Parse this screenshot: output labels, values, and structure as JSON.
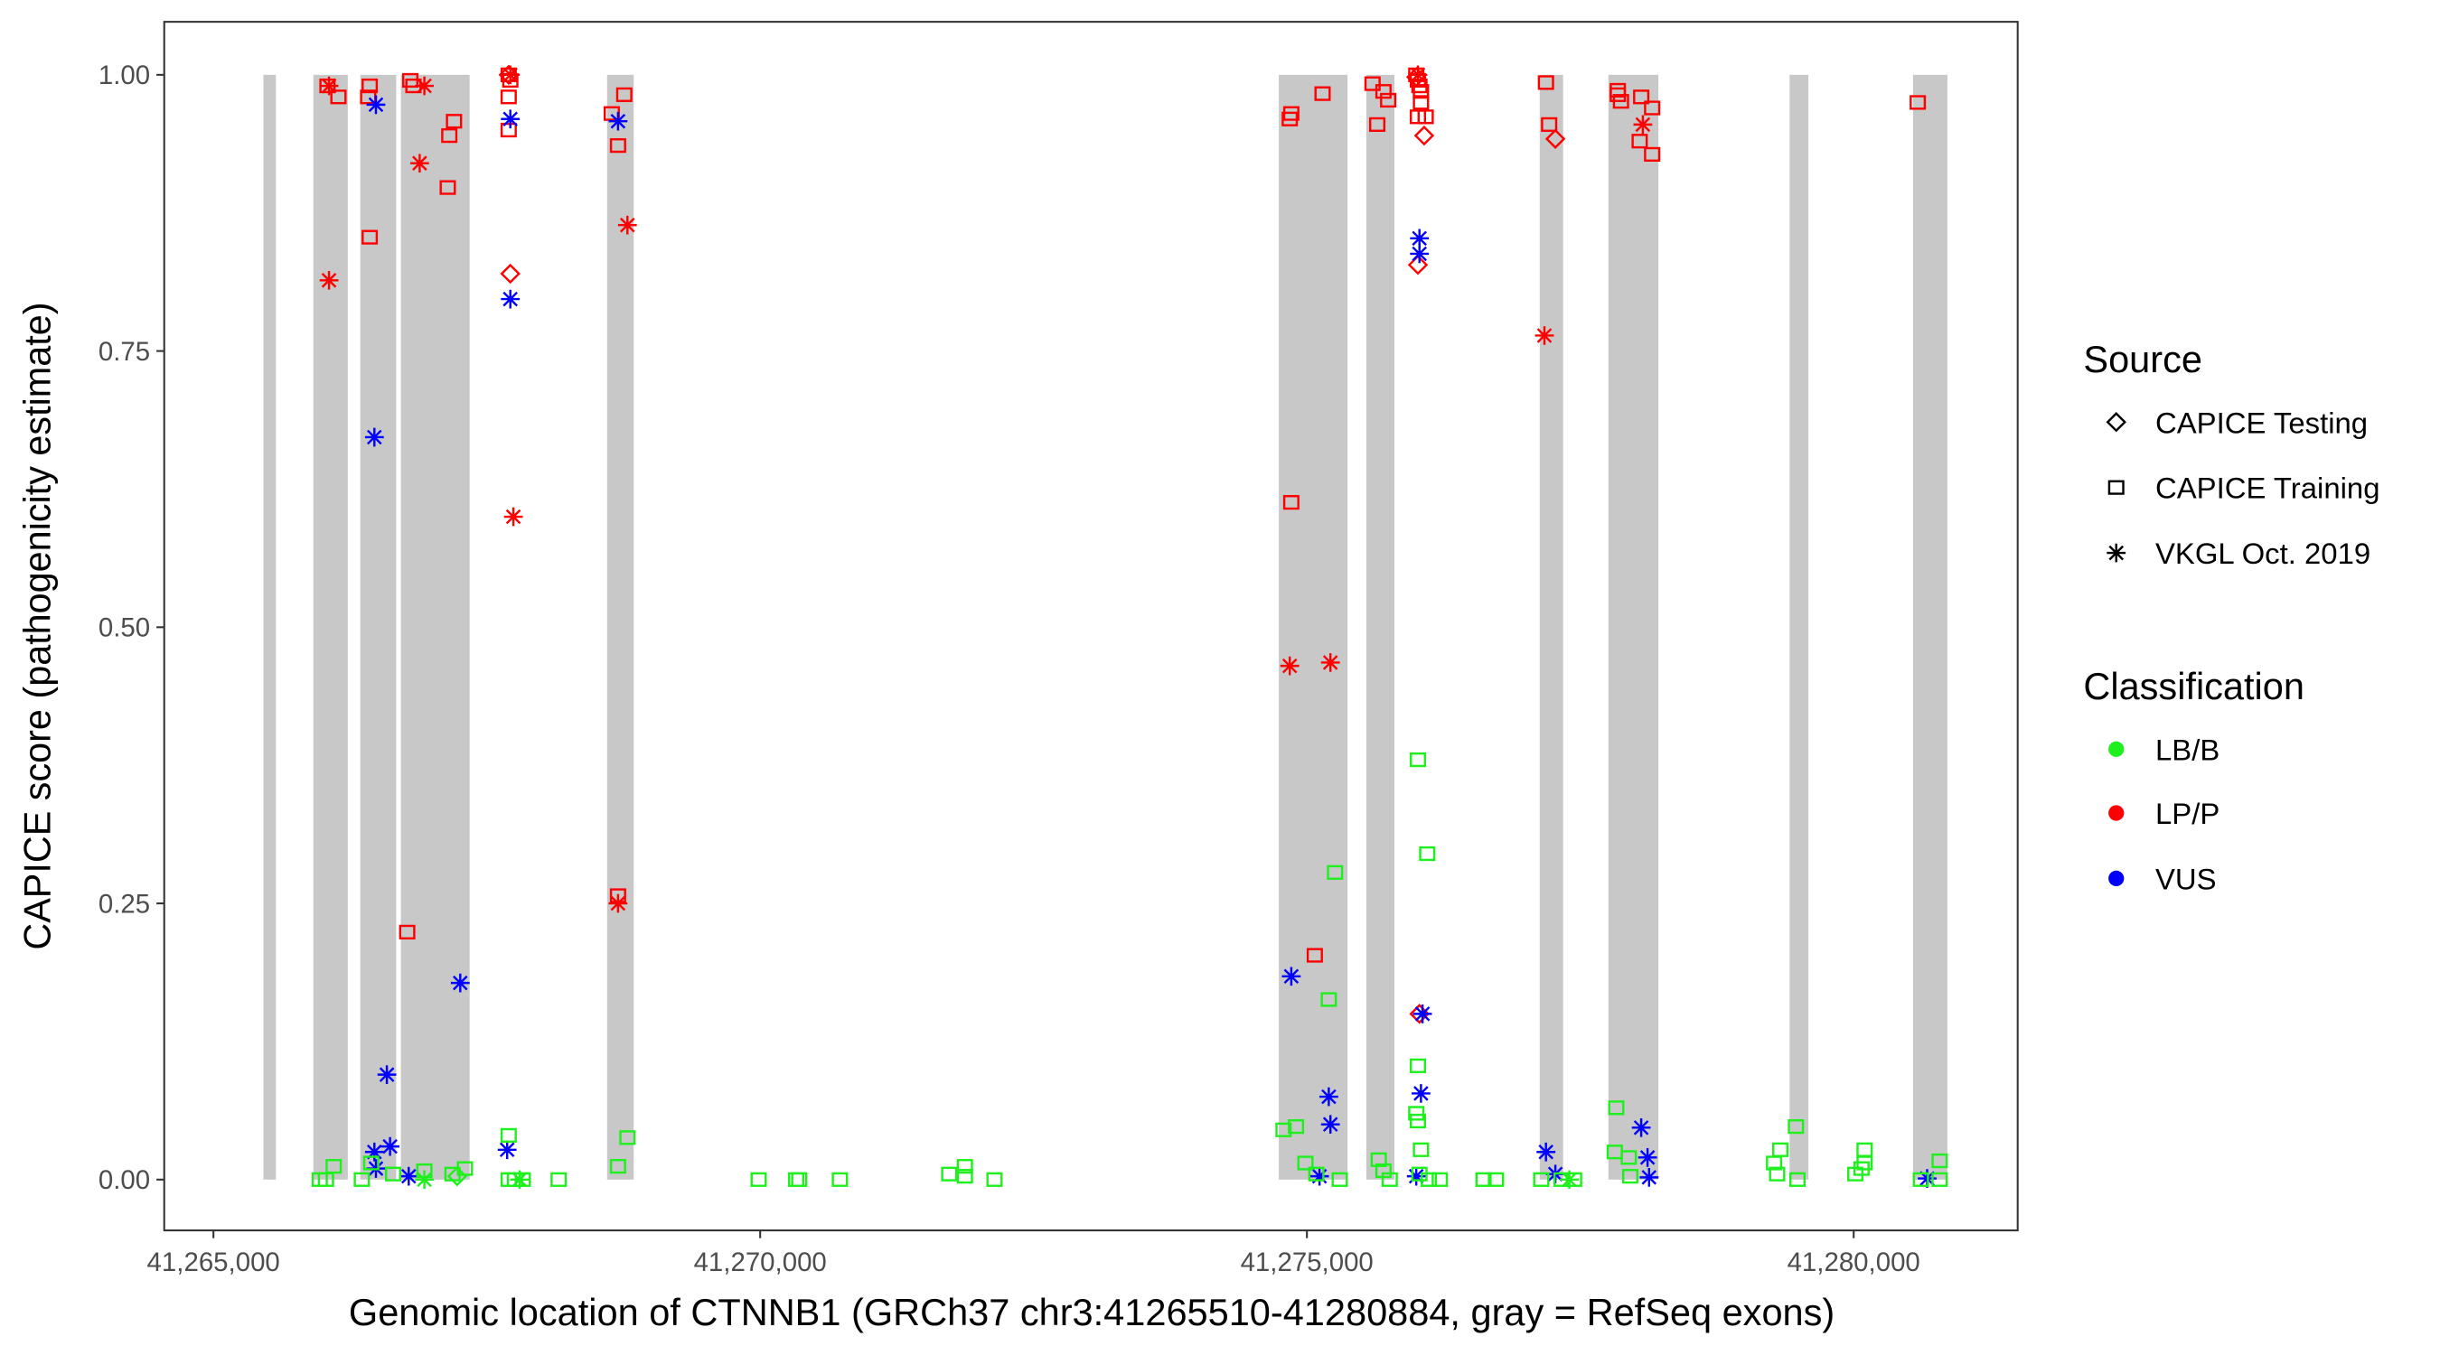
{
  "chart_data": {
    "type": "scatter",
    "xlabel": "Genomic location of CTNNB1 (GRCh37 chr3:41265510-41280884, gray = RefSeq exons)",
    "ylabel": "CAPICE score (pathogenicity estimate)",
    "xlim": [
      41264550,
      41281500
    ],
    "ylim": [
      -0.046,
      1.048
    ],
    "x_ticks": [
      41265000,
      41270000,
      41275000,
      41280000
    ],
    "x_tick_labels": [
      "41,265,000",
      "41,270,000",
      "41,275,000",
      "41,280,000"
    ],
    "y_ticks": [
      0,
      0.25,
      0.5,
      0.75,
      1.0
    ],
    "y_tick_labels": [
      "0.00",
      "0.25",
      "0.50",
      "0.75",
      "1.00"
    ],
    "grid": false,
    "exons": [
      [
        41265457,
        41265571
      ],
      [
        41265914,
        41266229
      ],
      [
        41266343,
        41266671
      ],
      [
        41266714,
        41267343
      ],
      [
        41268600,
        41268843
      ],
      [
        41274743,
        41275371
      ],
      [
        41275543,
        41275800
      ],
      [
        41277129,
        41277343
      ],
      [
        41277757,
        41278214
      ],
      [
        41279414,
        41279586
      ],
      [
        41280543,
        41280857
      ]
    ],
    "exon_color": "#c8c8c8",
    "legend": {
      "placement": "right",
      "source_title": "Source",
      "source_items": [
        {
          "key": "testing",
          "label": "CAPICE Testing",
          "shape": "diamond"
        },
        {
          "key": "training",
          "label": "CAPICE Training",
          "shape": "square"
        },
        {
          "key": "vkgl",
          "label": "VKGL Oct. 2019",
          "shape": "asterisk"
        }
      ],
      "class_title": "Classification",
      "class_items": [
        {
          "key": "LB/B",
          "label": "LB/B",
          "color": "#1ef01e"
        },
        {
          "key": "LP/P",
          "label": "LP/P",
          "color": "#ff0000"
        },
        {
          "key": "VUS",
          "label": "VUS",
          "color": "#0000ff"
        }
      ]
    },
    "points": [
      [
        41266043,
        0.99,
        "training",
        "LP/P"
      ],
      [
        41266143,
        0.98,
        "training",
        "LP/P"
      ],
      [
        41266429,
        0.99,
        "training",
        "LP/P"
      ],
      [
        41266415,
        0.98,
        "training",
        "LP/P"
      ],
      [
        41266429,
        0.853,
        "training",
        "LP/P"
      ],
      [
        41266800,
        0.995,
        "training",
        "LP/P"
      ],
      [
        41266829,
        0.99,
        "training",
        "LP/P"
      ],
      [
        41267200,
        0.958,
        "training",
        "LP/P"
      ],
      [
        41267157,
        0.945,
        "training",
        "LP/P"
      ],
      [
        41267143,
        0.898,
        "training",
        "LP/P"
      ],
      [
        41266772,
        0.224,
        "training",
        "LP/P"
      ],
      [
        41267700,
        1.0,
        "training",
        "LP/P"
      ],
      [
        41267715,
        0.995,
        "training",
        "LP/P"
      ],
      [
        41267700,
        0.98,
        "training",
        "LP/P"
      ],
      [
        41267700,
        0.95,
        "training",
        "LP/P"
      ],
      [
        41268643,
        0.965,
        "training",
        "LP/P"
      ],
      [
        41268757,
        0.982,
        "training",
        "LP/P"
      ],
      [
        41268700,
        0.936,
        "training",
        "LP/P"
      ],
      [
        41268700,
        0.257,
        "training",
        "LP/P"
      ],
      [
        41274843,
        0.96,
        "training",
        "LP/P"
      ],
      [
        41274857,
        0.965,
        "training",
        "LP/P"
      ],
      [
        41275143,
        0.983,
        "training",
        "LP/P"
      ],
      [
        41274857,
        0.613,
        "training",
        "LP/P"
      ],
      [
        41275072,
        0.203,
        "training",
        "LP/P"
      ],
      [
        41275600,
        0.992,
        "training",
        "LP/P"
      ],
      [
        41275643,
        0.955,
        "training",
        "LP/P"
      ],
      [
        41275743,
        0.977,
        "training",
        "LP/P"
      ],
      [
        41275700,
        0.985,
        "training",
        "LP/P"
      ],
      [
        41276000,
        1.0,
        "training",
        "LP/P"
      ],
      [
        41276015,
        0.995,
        "training",
        "LP/P"
      ],
      [
        41276029,
        0.99,
        "training",
        "LP/P"
      ],
      [
        41276043,
        0.985,
        "training",
        "LP/P"
      ],
      [
        41276043,
        0.975,
        "training",
        "LP/P"
      ],
      [
        41276086,
        0.962,
        "training",
        "LP/P"
      ],
      [
        41276015,
        0.962,
        "training",
        "LP/P"
      ],
      [
        41277186,
        0.993,
        "training",
        "LP/P"
      ],
      [
        41277215,
        0.955,
        "training",
        "LP/P"
      ],
      [
        41277843,
        0.986,
        "training",
        "LP/P"
      ],
      [
        41277872,
        0.976,
        "training",
        "LP/P"
      ],
      [
        41277843,
        0.982,
        "training",
        "LP/P"
      ],
      [
        41278057,
        0.98,
        "training",
        "LP/P"
      ],
      [
        41278043,
        0.94,
        "training",
        "LP/P"
      ],
      [
        41278157,
        0.928,
        "training",
        "LP/P"
      ],
      [
        41278157,
        0.97,
        "training",
        "LP/P"
      ],
      [
        41280586,
        0.975,
        "training",
        "LP/P"
      ],
      [
        41266057,
        0.99,
        "vkgl",
        "LP/P"
      ],
      [
        41266929,
        0.99,
        "vkgl",
        "LP/P"
      ],
      [
        41266057,
        0.814,
        "vkgl",
        "LP/P"
      ],
      [
        41266886,
        0.92,
        "vkgl",
        "LP/P"
      ],
      [
        41267743,
        0.6,
        "vkgl",
        "LP/P"
      ],
      [
        41268786,
        0.864,
        "vkgl",
        "LP/P"
      ],
      [
        41268700,
        0.25,
        "vkgl",
        "LP/P"
      ],
      [
        41274843,
        0.465,
        "vkgl",
        "LP/P"
      ],
      [
        41275215,
        0.468,
        "vkgl",
        "LP/P"
      ],
      [
        41277172,
        0.764,
        "vkgl",
        "LP/P"
      ],
      [
        41278072,
        0.955,
        "vkgl",
        "LP/P"
      ],
      [
        41267715,
        1.0,
        "vkgl",
        "LP/P"
      ],
      [
        41276015,
        1.0,
        "vkgl",
        "LP/P"
      ],
      [
        41267715,
        0.82,
        "testing",
        "LP/P"
      ],
      [
        41276072,
        0.945,
        "testing",
        "LP/P"
      ],
      [
        41277272,
        0.942,
        "testing",
        "LP/P"
      ],
      [
        41276015,
        0.828,
        "testing",
        "LP/P"
      ],
      [
        41276029,
        0.15,
        "testing",
        "LP/P"
      ],
      [
        41267700,
        1.0,
        "testing",
        "LP/P"
      ],
      [
        41276000,
        0.998,
        "testing",
        "LP/P"
      ],
      [
        41266486,
        0.973,
        "vkgl",
        "VUS"
      ],
      [
        41266472,
        0.672,
        "vkgl",
        "VUS"
      ],
      [
        41266586,
        0.095,
        "vkgl",
        "VUS"
      ],
      [
        41266615,
        0.03,
        "vkgl",
        "VUS"
      ],
      [
        41266486,
        0.01,
        "vkgl",
        "VUS"
      ],
      [
        41266472,
        0.025,
        "vkgl",
        "VUS"
      ],
      [
        41266786,
        0.003,
        "vkgl",
        "VUS"
      ],
      [
        41267257,
        0.178,
        "vkgl",
        "VUS"
      ],
      [
        41267715,
        0.96,
        "vkgl",
        "VUS"
      ],
      [
        41267715,
        0.797,
        "vkgl",
        "VUS"
      ],
      [
        41267686,
        0.027,
        "vkgl",
        "VUS"
      ],
      [
        41268700,
        0.958,
        "vkgl",
        "VUS"
      ],
      [
        41274857,
        0.184,
        "vkgl",
        "VUS"
      ],
      [
        41275200,
        0.075,
        "vkgl",
        "VUS"
      ],
      [
        41275215,
        0.05,
        "vkgl",
        "VUS"
      ],
      [
        41275115,
        0.003,
        "vkgl",
        "VUS"
      ],
      [
        41276029,
        0.852,
        "vkgl",
        "VUS"
      ],
      [
        41276029,
        0.838,
        "vkgl",
        "VUS"
      ],
      [
        41276043,
        0.078,
        "vkgl",
        "VUS"
      ],
      [
        41276057,
        0.15,
        "vkgl",
        "VUS"
      ],
      [
        41276000,
        0.003,
        "vkgl",
        "VUS"
      ],
      [
        41277186,
        0.025,
        "vkgl",
        "VUS"
      ],
      [
        41277272,
        0.005,
        "vkgl",
        "VUS"
      ],
      [
        41278057,
        0.047,
        "vkgl",
        "VUS"
      ],
      [
        41278115,
        0.02,
        "vkgl",
        "VUS"
      ],
      [
        41278129,
        0.002,
        "vkgl",
        "VUS"
      ],
      [
        41280672,
        0.001,
        "vkgl",
        "VUS"
      ],
      [
        41265972,
        0,
        "training",
        "LB/B"
      ],
      [
        41266029,
        0,
        "training",
        "LB/B"
      ],
      [
        41266100,
        0.012,
        "training",
        "LB/B"
      ],
      [
        41266357,
        0,
        "training",
        "LB/B"
      ],
      [
        41266443,
        0.015,
        "training",
        "LB/B"
      ],
      [
        41266643,
        0.005,
        "training",
        "LB/B"
      ],
      [
        41266929,
        0.008,
        "training",
        "LB/B"
      ],
      [
        41267186,
        0.005,
        "training",
        "LB/B"
      ],
      [
        41267300,
        0.01,
        "training",
        "LB/B"
      ],
      [
        41267700,
        0.04,
        "training",
        "LB/B"
      ],
      [
        41267700,
        0,
        "training",
        "LB/B"
      ],
      [
        41267757,
        0,
        "training",
        "LB/B"
      ],
      [
        41267829,
        0,
        "training",
        "LB/B"
      ],
      [
        41268157,
        0,
        "training",
        "LB/B"
      ],
      [
        41268700,
        0.012,
        "training",
        "LB/B"
      ],
      [
        41268786,
        0.038,
        "training",
        "LB/B"
      ],
      [
        41269986,
        0,
        "training",
        "LB/B"
      ],
      [
        41270329,
        0,
        "training",
        "LB/B"
      ],
      [
        41270357,
        0,
        "training",
        "LB/B"
      ],
      [
        41270729,
        0,
        "training",
        "LB/B"
      ],
      [
        41271729,
        0.005,
        "training",
        "LB/B"
      ],
      [
        41271872,
        0.012,
        "training",
        "LB/B"
      ],
      [
        41271872,
        0.003,
        "training",
        "LB/B"
      ],
      [
        41272143,
        0,
        "training",
        "LB/B"
      ],
      [
        41274786,
        0.045,
        "training",
        "LB/B"
      ],
      [
        41274900,
        0.048,
        "training",
        "LB/B"
      ],
      [
        41274986,
        0.015,
        "training",
        "LB/B"
      ],
      [
        41275086,
        0.005,
        "training",
        "LB/B"
      ],
      [
        41275300,
        0,
        "training",
        "LB/B"
      ],
      [
        41275200,
        0.163,
        "training",
        "LB/B"
      ],
      [
        41275257,
        0.278,
        "training",
        "LB/B"
      ],
      [
        41275657,
        0.018,
        "training",
        "LB/B"
      ],
      [
        41275700,
        0.008,
        "training",
        "LB/B"
      ],
      [
        41275757,
        0,
        "training",
        "LB/B"
      ],
      [
        41276015,
        0.38,
        "training",
        "LB/B"
      ],
      [
        41276100,
        0.295,
        "training",
        "LB/B"
      ],
      [
        41276015,
        0.103,
        "training",
        "LB/B"
      ],
      [
        41276000,
        0.06,
        "training",
        "LB/B"
      ],
      [
        41276015,
        0.053,
        "training",
        "LB/B"
      ],
      [
        41276043,
        0.027,
        "training",
        "LB/B"
      ],
      [
        41276029,
        0.005,
        "training",
        "LB/B"
      ],
      [
        41276115,
        0,
        "training",
        "LB/B"
      ],
      [
        41276215,
        0,
        "training",
        "LB/B"
      ],
      [
        41276615,
        0,
        "training",
        "LB/B"
      ],
      [
        41276729,
        0,
        "training",
        "LB/B"
      ],
      [
        41277143,
        0,
        "training",
        "LB/B"
      ],
      [
        41277329,
        0,
        "training",
        "LB/B"
      ],
      [
        41277443,
        0,
        "training",
        "LB/B"
      ],
      [
        41277829,
        0.065,
        "training",
        "LB/B"
      ],
      [
        41277815,
        0.025,
        "training",
        "LB/B"
      ],
      [
        41277943,
        0.02,
        "training",
        "LB/B"
      ],
      [
        41277957,
        0.003,
        "training",
        "LB/B"
      ],
      [
        41279272,
        0.015,
        "training",
        "LB/B"
      ],
      [
        41279300,
        0.005,
        "training",
        "LB/B"
      ],
      [
        41279329,
        0.027,
        "training",
        "LB/B"
      ],
      [
        41279472,
        0.048,
        "training",
        "LB/B"
      ],
      [
        41279486,
        0,
        "training",
        "LB/B"
      ],
      [
        41280015,
        0.005,
        "training",
        "LB/B"
      ],
      [
        41280072,
        0.01,
        "training",
        "LB/B"
      ],
      [
        41280100,
        0.015,
        "training",
        "LB/B"
      ],
      [
        41280100,
        0.027,
        "training",
        "LB/B"
      ],
      [
        41280615,
        0,
        "training",
        "LB/B"
      ],
      [
        41280786,
        0.017,
        "training",
        "LB/B"
      ],
      [
        41280786,
        0,
        "training",
        "LB/B"
      ],
      [
        41266929,
        0,
        "vkgl",
        "LB/B"
      ],
      [
        41267800,
        0,
        "vkgl",
        "LB/B"
      ],
      [
        41277400,
        0,
        "vkgl",
        "LB/B"
      ],
      [
        41267229,
        0.003,
        "testing",
        "LB/B"
      ]
    ]
  }
}
